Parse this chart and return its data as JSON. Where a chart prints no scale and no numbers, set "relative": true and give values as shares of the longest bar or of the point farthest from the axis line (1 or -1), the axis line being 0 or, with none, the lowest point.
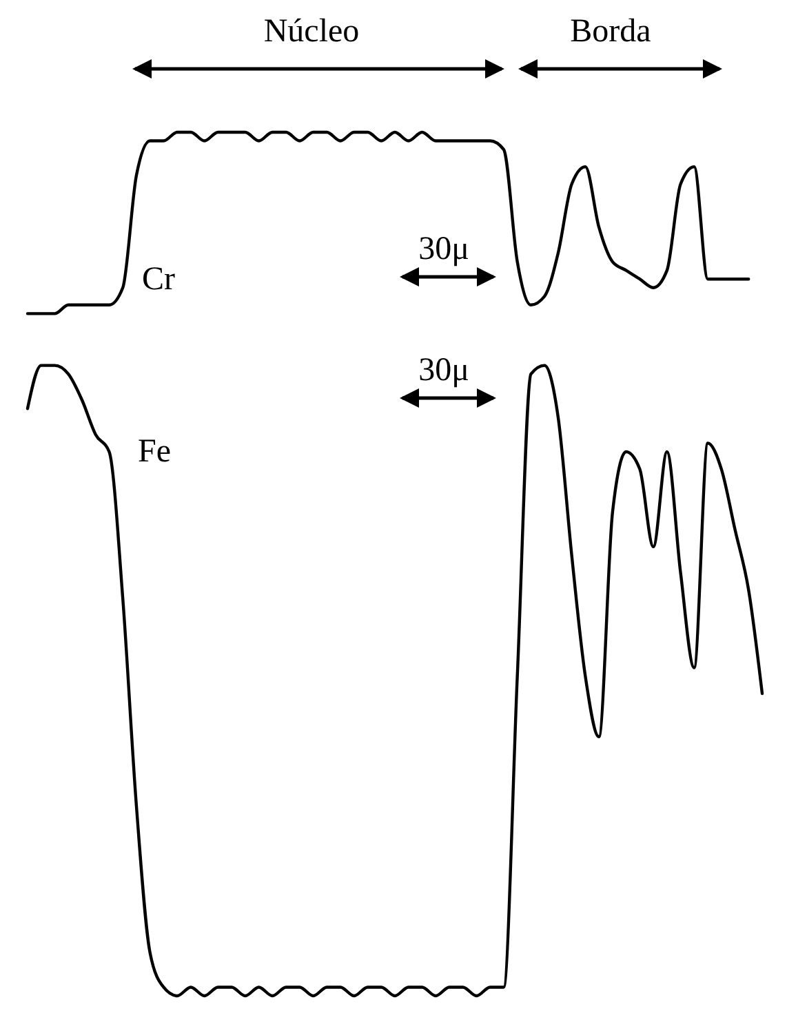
{
  "chart_data": {
    "type": "line",
    "relative": true,
    "categories": [
      null,
      null,
      null,
      null,
      null,
      null,
      null,
      null,
      null,
      null,
      null,
      null,
      null,
      null,
      null,
      null,
      null,
      null,
      null,
      null,
      null,
      null,
      null,
      null,
      null,
      null,
      null,
      null,
      null,
      null,
      null,
      null,
      null,
      null,
      null,
      null,
      null,
      null,
      null,
      null,
      null,
      null,
      null,
      null,
      null,
      null,
      null,
      null,
      null,
      null,
      null,
      null,
      null,
      null,
      null
    ],
    "series": [
      {
        "name": "Cr",
        "color": "#000000",
        "values": [
          0.79,
          0.79,
          0.79,
          0.8,
          0.8,
          0.8,
          0.8,
          0.82,
          0.95,
          0.99,
          0.99,
          1.0,
          1.0,
          0.99,
          1.0,
          1.0,
          1.0,
          0.99,
          1.0,
          1.0,
          0.99,
          1.0,
          1.0,
          0.99,
          1.0,
          1.0,
          0.99,
          1.0,
          0.99,
          1.0,
          0.99,
          0.99,
          0.99,
          0.99,
          0.99,
          0.98,
          0.85,
          0.8,
          0.81,
          0.86,
          0.94,
          0.96,
          0.89,
          0.85,
          0.84,
          0.83,
          0.82,
          0.84,
          0.94,
          0.96,
          0.83,
          0.83,
          0.83,
          0.83,
          null
        ]
      },
      {
        "name": "Fe",
        "color": "#000000",
        "values": [
          0.68,
          0.73,
          0.73,
          0.72,
          0.69,
          0.65,
          0.63,
          0.46,
          0.22,
          0.05,
          0.01,
          0.0,
          0.01,
          0.0,
          0.01,
          0.01,
          0.0,
          0.01,
          0.0,
          0.01,
          0.01,
          0.0,
          0.01,
          0.01,
          0.0,
          0.01,
          0.01,
          0.0,
          0.01,
          0.01,
          0.0,
          0.01,
          0.01,
          0.0,
          0.01,
          0.01,
          0.37,
          0.72,
          0.73,
          0.67,
          0.51,
          0.37,
          0.3,
          0.56,
          0.63,
          0.61,
          0.52,
          0.63,
          0.49,
          0.38,
          0.64,
          0.61,
          0.54,
          0.47,
          0.35
        ]
      }
    ],
    "annotations": [
      "Núcleo",
      "Borda",
      "30μ",
      "30μ"
    ]
  }
}
